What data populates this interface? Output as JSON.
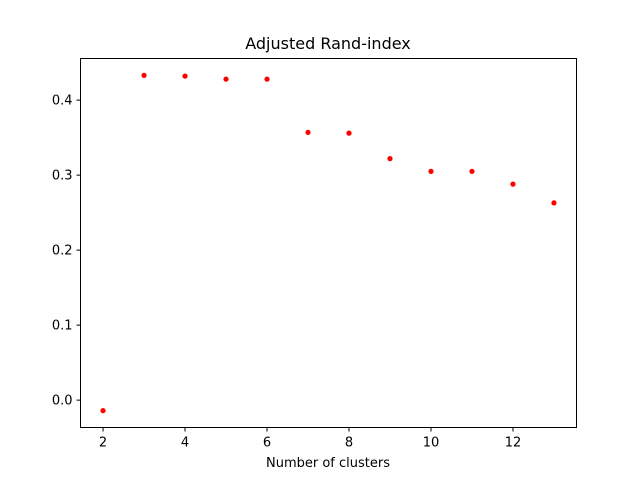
{
  "chart_data": {
    "type": "scatter",
    "title": "Adjusted Rand-index",
    "xlabel": "Number of clusters",
    "ylabel": "",
    "x": [
      2,
      3,
      4,
      5,
      6,
      7,
      8,
      9,
      10,
      11,
      12,
      13
    ],
    "y": [
      -0.014,
      0.433,
      0.432,
      0.428,
      0.428,
      0.357,
      0.356,
      0.322,
      0.305,
      0.305,
      0.288,
      0.263
    ],
    "xlim": [
      1.45,
      13.55
    ],
    "ylim": [
      -0.0365,
      0.4555
    ],
    "xticks": [
      2,
      4,
      6,
      8,
      10,
      12
    ],
    "yticks": [
      0.0,
      0.1,
      0.2,
      0.3,
      0.4
    ],
    "xtick_labels": [
      "2",
      "4",
      "6",
      "8",
      "10",
      "12"
    ],
    "ytick_labels": [
      "0.0",
      "0.1",
      "0.2",
      "0.3",
      "0.4"
    ],
    "marker_color": "#ff0000",
    "grid": false,
    "legend": "none"
  }
}
